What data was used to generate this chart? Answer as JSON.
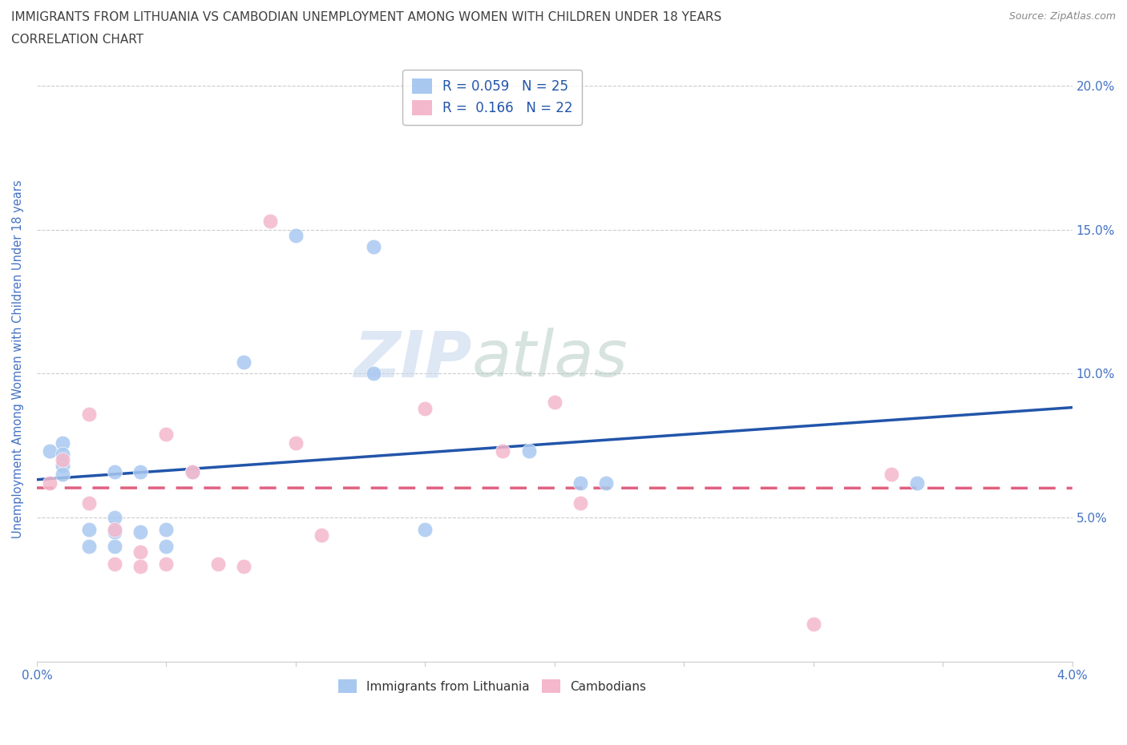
{
  "title_line1": "IMMIGRANTS FROM LITHUANIA VS CAMBODIAN UNEMPLOYMENT AMONG WOMEN WITH CHILDREN UNDER 18 YEARS",
  "title_line2": "CORRELATION CHART",
  "source_text": "Source: ZipAtlas.com",
  "ylabel": "Unemployment Among Women with Children Under 18 years",
  "xlim": [
    0.0,
    0.04
  ],
  "ylim": [
    0.0,
    0.21
  ],
  "xticks": [
    0.0,
    0.005,
    0.01,
    0.015,
    0.02,
    0.025,
    0.03,
    0.035,
    0.04
  ],
  "xticklabels": [
    "0.0%",
    "",
    "",
    "",
    "",
    "",
    "",
    "",
    "4.0%"
  ],
  "yticks": [
    0.05,
    0.1,
    0.15,
    0.2
  ],
  "yticklabels": [
    "5.0%",
    "10.0%",
    "15.0%",
    "20.0%"
  ],
  "blue_R": "0.059",
  "blue_N": "25",
  "pink_R": "0.166",
  "pink_N": "22",
  "blue_color": "#a8c8f0",
  "pink_color": "#f4b8cc",
  "blue_line_color": "#2255aa",
  "pink_line_color": "#e06080",
  "legend_label_blue": "Immigrants from Lithuania",
  "legend_label_pink": "Cambodians",
  "watermark_zip": "ZIP",
  "watermark_atlas": "atlas",
  "blue_scatter_x": [
    0.0005,
    0.001,
    0.001,
    0.001,
    0.001,
    0.002,
    0.002,
    0.003,
    0.003,
    0.003,
    0.003,
    0.004,
    0.004,
    0.005,
    0.005,
    0.006,
    0.008,
    0.01,
    0.013,
    0.013,
    0.015,
    0.019,
    0.021,
    0.022,
    0.034
  ],
  "blue_scatter_y": [
    0.073,
    0.076,
    0.068,
    0.072,
    0.065,
    0.046,
    0.04,
    0.05,
    0.066,
    0.04,
    0.045,
    0.045,
    0.066,
    0.046,
    0.04,
    0.066,
    0.104,
    0.148,
    0.144,
    0.1,
    0.046,
    0.073,
    0.062,
    0.062,
    0.062
  ],
  "pink_scatter_x": [
    0.0005,
    0.001,
    0.002,
    0.002,
    0.003,
    0.003,
    0.004,
    0.004,
    0.005,
    0.005,
    0.006,
    0.007,
    0.008,
    0.009,
    0.01,
    0.011,
    0.015,
    0.018,
    0.02,
    0.021,
    0.03,
    0.033
  ],
  "pink_scatter_y": [
    0.062,
    0.07,
    0.055,
    0.086,
    0.046,
    0.034,
    0.033,
    0.038,
    0.034,
    0.079,
    0.066,
    0.034,
    0.033,
    0.153,
    0.076,
    0.044,
    0.088,
    0.073,
    0.09,
    0.055,
    0.013,
    0.065
  ],
  "background_color": "#ffffff",
  "grid_color": "#cccccc",
  "title_color": "#404040",
  "axis_label_color": "#4472c4",
  "tick_label_color": "#4472c4",
  "marker_size": 180
}
